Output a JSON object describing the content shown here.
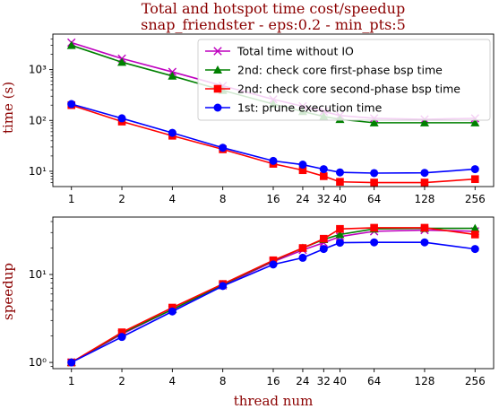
{
  "chart_data": [
    {
      "type": "line",
      "title": "Total and hotspot time cost/speedup",
      "subtitle": "snap_friendster - eps:0.2 - min_pts:5",
      "xlabel": "",
      "ylabel": "time (s)",
      "yscale": "log",
      "xscale": "log2",
      "ylim": [
        5,
        5000
      ],
      "x": [
        1,
        2,
        4,
        8,
        16,
        24,
        32,
        40,
        64,
        128,
        256
      ],
      "xtick_labels": [
        "1",
        "2",
        "4",
        "8",
        "16",
        "24",
        "32",
        "40",
        "64",
        "128",
        "256"
      ],
      "ytick_labels": [
        "10¹",
        "10²",
        "10³"
      ],
      "legend_position": "upper-right",
      "series": [
        {
          "name": "Total time without IO",
          "color": "#bf00bf",
          "marker": "x",
          "values": [
            3400,
            1650,
            900,
            480,
            260,
            190,
            150,
            125,
            110,
            105,
            110
          ]
        },
        {
          "name": "2nd: check core first-phase bsp time",
          "color": "#008000",
          "marker": "triangle",
          "values": [
            3000,
            1400,
            750,
            390,
            210,
            150,
            120,
            105,
            90,
            90,
            90
          ]
        },
        {
          "name": "2nd: check core second-phase bsp time",
          "color": "#ff0000",
          "marker": "square",
          "values": [
            200,
            95,
            50,
            27,
            14,
            10.5,
            8,
            6.2,
            6,
            6,
            7
          ]
        },
        {
          "name": "1st: prune execution time",
          "color": "#0000ff",
          "marker": "circle",
          "values": [
            210,
            110,
            57,
            29,
            16,
            13.5,
            11,
            9.5,
            9.2,
            9.3,
            11
          ]
        }
      ]
    },
    {
      "type": "line",
      "title": "",
      "xlabel": "thread num",
      "ylabel": "speedup",
      "yscale": "log",
      "xscale": "log2",
      "ylim": [
        0.85,
        45
      ],
      "x": [
        1,
        2,
        4,
        8,
        16,
        24,
        32,
        40,
        64,
        128,
        256
      ],
      "xtick_labels": [
        "1",
        "2",
        "4",
        "8",
        "16",
        "24",
        "32",
        "40",
        "64",
        "128",
        "256"
      ],
      "ytick_labels": [
        "10⁰",
        "10¹"
      ],
      "series": [
        {
          "color": "#bf00bf",
          "marker": "x",
          "values": [
            1,
            2.1,
            4,
            7.5,
            14,
            19,
            23,
            27,
            31,
            32,
            31
          ]
        },
        {
          "color": "#008000",
          "marker": "triangle",
          "values": [
            1,
            2.15,
            4,
            7.7,
            14.3,
            20,
            25,
            28.5,
            33,
            33.5,
            33.5
          ]
        },
        {
          "color": "#ff0000",
          "marker": "square",
          "values": [
            1,
            2.2,
            4.2,
            7.8,
            14.5,
            20,
            25.5,
            33,
            34,
            34,
            28.5
          ]
        },
        {
          "color": "#0000ff",
          "marker": "circle",
          "values": [
            1,
            1.95,
            3.8,
            7.4,
            13,
            15.5,
            19.5,
            23,
            23.2,
            23.2,
            19.5
          ]
        }
      ]
    }
  ]
}
